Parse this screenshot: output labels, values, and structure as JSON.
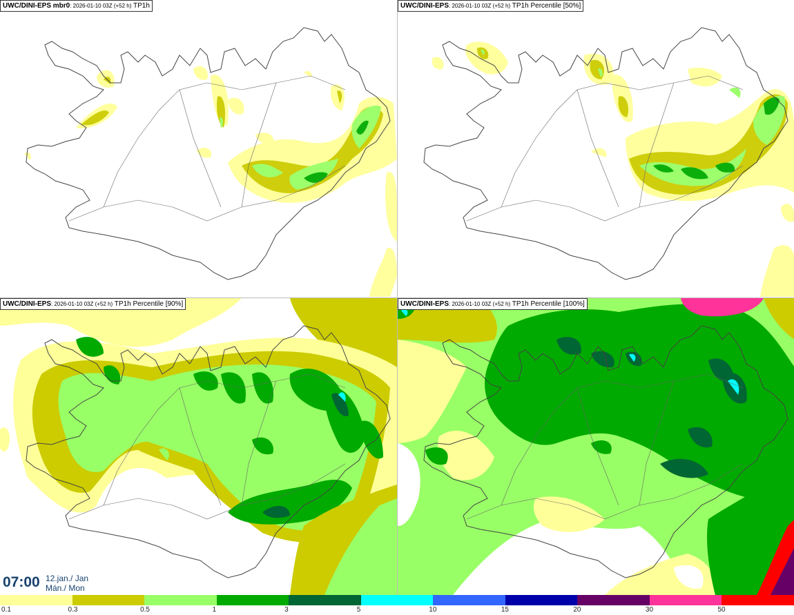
{
  "panels": [
    {
      "model": "UWC/DINI-EPS mbr0",
      "run": ": 2026-01-10 03Z (+52 h)",
      "field": "TP1h",
      "type": "mbr0"
    },
    {
      "model": "UWC/DINI-EPS",
      "run": ": 2026-01-10 03Z (+52 h)",
      "field": "TP1h Percentile [50%]",
      "type": "p50"
    },
    {
      "model": "UWC/DINI-EPS",
      "run": ": 2026-01-10 03Z (+52 h)",
      "field": "TP1h Percentile [90%]",
      "type": "p90"
    },
    {
      "model": "UWC/DINI-EPS",
      "run": ": 2026-01-10 03Z (+52 h)",
      "field": "TP1h Percentile [100%]",
      "type": "p100"
    }
  ],
  "valid_time": {
    "time": "07:00",
    "date_line1": "12.jan./ Jan",
    "date_line2": "Mán./ Mon"
  },
  "colorbar": {
    "colors": [
      "#ffff99",
      "#cccc00",
      "#99ff66",
      "#00aa00",
      "#006633",
      "#00ffff",
      "#3366ff",
      "#0000aa",
      "#660066",
      "#ff3399",
      "#ff0000"
    ],
    "labels": [
      "0.1",
      "0.3",
      "0.5",
      "1",
      "3",
      "5",
      "10",
      "15",
      "20",
      "30",
      "50"
    ]
  }
}
